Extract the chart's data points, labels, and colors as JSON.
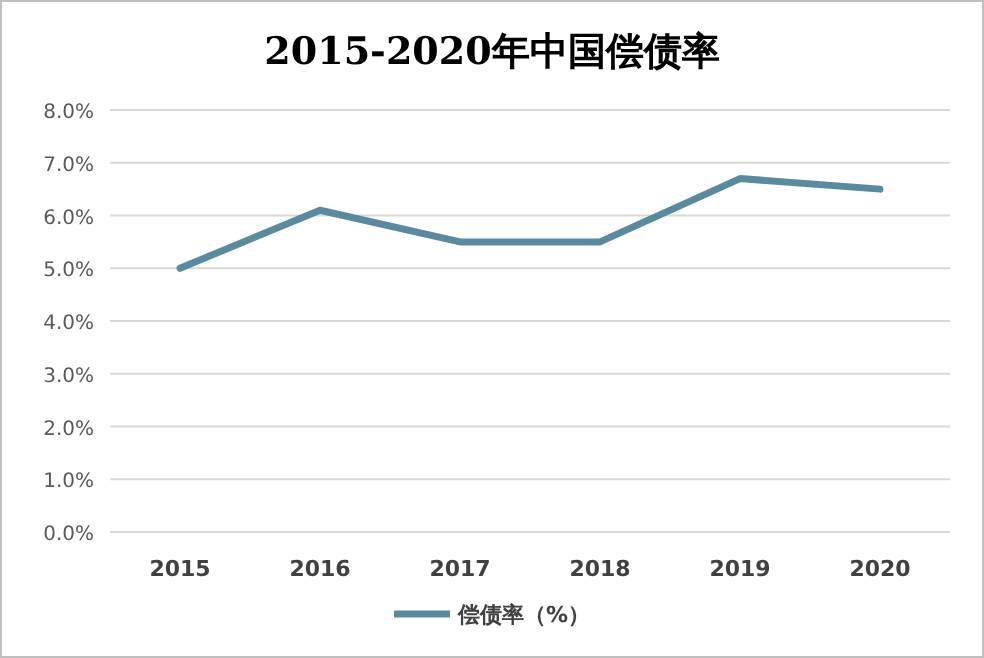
{
  "chart_data": {
    "type": "line",
    "title": "2015-2020年中国偿债率",
    "categories": [
      "2015",
      "2016",
      "2017",
      "2018",
      "2019",
      "2020"
    ],
    "series": [
      {
        "name": "偿债率（%）",
        "color": "#5b8a9e",
        "values": [
          5.0,
          6.1,
          5.5,
          5.5,
          6.7,
          6.5
        ]
      }
    ],
    "ylim": [
      0,
      8
    ],
    "yticks": [
      {
        "value": 0,
        "label": "0.0%"
      },
      {
        "value": 1,
        "label": "1.0%"
      },
      {
        "value": 2,
        "label": "2.0%"
      },
      {
        "value": 3,
        "label": "3.0%"
      },
      {
        "value": 4,
        "label": "4.0%"
      },
      {
        "value": 5,
        "label": "5.0%"
      },
      {
        "value": 6,
        "label": "6.0%"
      },
      {
        "value": 7,
        "label": "7.0%"
      },
      {
        "value": 8,
        "label": "8.0%"
      }
    ],
    "grid": "y",
    "legend": "bottom",
    "marker": "none",
    "line_style": "solid"
  }
}
